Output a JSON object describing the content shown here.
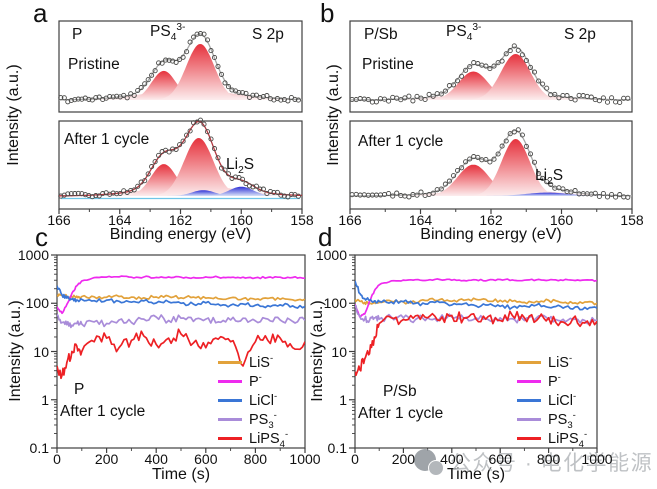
{
  "figure": {
    "watermark": {
      "text": "公众号 · 电化学能源",
      "icon": "official-account-logo",
      "color": "#b5b8bb"
    },
    "axis_color": "#3f3f3f"
  },
  "chart_data": [
    {
      "panel": "a",
      "type": "area",
      "sample": "P",
      "region": "S 2p",
      "xlabel": "Binding energy (eV)",
      "ylabel": "Intensity (a.u.)",
      "x_ticks": [
        166,
        164,
        162,
        160,
        158
      ],
      "x_range": [
        166,
        158
      ],
      "x_unit": "eV",
      "subpanels": [
        {
          "label": "Pristine",
          "peak_label": "PS_4^3-",
          "components": [
            {
              "name": "background",
              "center": 161.7,
              "sigma": 1.5,
              "height": 0.18,
              "color_type": "pale"
            },
            {
              "name": "fit-peak",
              "center": 162.55,
              "sigma": 0.4,
              "height": 0.52,
              "color_type": "red"
            },
            {
              "name": "fit-peak",
              "center": 161.35,
              "sigma": 0.46,
              "height": 1.0,
              "color_type": "red"
            }
          ]
        },
        {
          "label": "After 1 cycle",
          "annotation": "Li_2S",
          "baseline_line_color": "#6fc6e8",
          "components": [
            {
              "name": "background",
              "center": 161.6,
              "sigma": 1.5,
              "height": 0.18,
              "color_type": "pale"
            },
            {
              "name": "fit-peak",
              "center": 162.55,
              "sigma": 0.42,
              "height": 0.55,
              "color_type": "red"
            },
            {
              "name": "fit-peak",
              "center": 161.4,
              "sigma": 0.48,
              "height": 1.0,
              "color_type": "red"
            },
            {
              "name": "fit-peak",
              "center": 161.25,
              "sigma": 0.38,
              "height": 0.1,
              "color_type": "blue"
            },
            {
              "name": "fit-peak",
              "center": 160.0,
              "sigma": 0.4,
              "height": 0.16,
              "color_type": "blue"
            }
          ]
        }
      ]
    },
    {
      "panel": "b",
      "type": "area",
      "sample": "P/Sb",
      "region": "S 2p",
      "xlabel": "Binding energy (eV)",
      "ylabel": "Intensity (a.u.)",
      "x_ticks": [
        166,
        164,
        162,
        160,
        158
      ],
      "x_range": [
        166,
        158
      ],
      "x_unit": "eV",
      "subpanels": [
        {
          "label": "Pristine",
          "peak_label": "PS_4^3-",
          "components": [
            {
              "name": "background",
              "center": 161.8,
              "sigma": 1.4,
              "height": 0.15,
              "color_type": "pale"
            },
            {
              "name": "fit-peak",
              "center": 162.5,
              "sigma": 0.42,
              "height": 0.62,
              "color_type": "red"
            },
            {
              "name": "fit-peak",
              "center": 161.3,
              "sigma": 0.42,
              "height": 1.0,
              "color_type": "red"
            }
          ]
        },
        {
          "label": "After 1 cycle",
          "annotation": "Li_2S",
          "components": [
            {
              "name": "background",
              "center": 161.7,
              "sigma": 1.4,
              "height": 0.12,
              "color_type": "pale"
            },
            {
              "name": "fit-peak",
              "center": 162.5,
              "sigma": 0.45,
              "height": 0.55,
              "color_type": "red"
            },
            {
              "name": "fit-peak",
              "center": 161.3,
              "sigma": 0.4,
              "height": 1.0,
              "color_type": "red"
            },
            {
              "name": "fit-peak",
              "center": 160.4,
              "sigma": 0.6,
              "height": 0.06,
              "color_type": "blue"
            }
          ]
        }
      ]
    },
    {
      "panel": "c",
      "type": "line",
      "sample": "P",
      "condition": "After 1 cycle",
      "xlabel": "Time (s)",
      "ylabel": "Intensity (a.u.)",
      "x_ticks": [
        0,
        200,
        400,
        600,
        800,
        1000
      ],
      "y_ticks": [
        "1000",
        "100",
        "10",
        "1",
        "0.1"
      ],
      "y_scale": "log",
      "y_range": [
        0.1,
        1000
      ],
      "x_range": [
        0,
        1000
      ],
      "t": [
        0,
        20,
        40,
        60,
        80,
        100,
        150,
        200,
        250,
        300,
        350,
        400,
        450,
        500,
        550,
        600,
        650,
        700,
        750,
        800,
        850,
        900,
        950,
        1000
      ],
      "series": [
        {
          "label": "LiS^-",
          "color": "#E2A23B",
          "jitter": 0.035,
          "values": [
            150,
            145,
            138,
            135,
            140,
            138,
            136,
            133,
            138,
            134,
            130,
            135,
            140,
            130,
            134,
            128,
            124,
            130,
            125,
            120,
            126,
            121,
            118,
            122
          ]
        },
        {
          "label": "P^-",
          "color": "#EE2AEE",
          "jitter": 0.018,
          "values": [
            85,
            62,
            95,
            160,
            230,
            290,
            340,
            348,
            352,
            346,
            350,
            343,
            350,
            346,
            341,
            352,
            347,
            341,
            347,
            337,
            343,
            347,
            341,
            331
          ]
        },
        {
          "label": "LiCl^-",
          "color": "#3A76D6",
          "jitter": 0.04,
          "values": [
            230,
            150,
            128,
            120,
            117,
            120,
            113,
            116,
            110,
            105,
            112,
            101,
            107,
            100,
            96,
            102,
            96,
            91,
            97,
            91,
            89,
            93,
            88,
            86
          ]
        },
        {
          "label": "PS_3^-",
          "color": "#A98CD9",
          "jitter": 0.07,
          "values": [
            60,
            40,
            36,
            35,
            38,
            37,
            41,
            38,
            45,
            40,
            47,
            52,
            44,
            49,
            42,
            47,
            41,
            45,
            49,
            43,
            47,
            45,
            42,
            44
          ]
        },
        {
          "label": "LiPS_4^-",
          "color": "#ED2024",
          "jitter": 0.13,
          "values": [
            5,
            3.2,
            6,
            10,
            13,
            10,
            16,
            19,
            12,
            17,
            21,
            14,
            19,
            23,
            15,
            12,
            18,
            16,
            5,
            16,
            17,
            19,
            12,
            16
          ]
        }
      ]
    },
    {
      "panel": "d",
      "type": "line",
      "sample": "P/Sb",
      "condition": "After 1 cycle",
      "xlabel": "Time (s)",
      "ylabel": "Intensity (a.u.)",
      "x_ticks": [
        0,
        200,
        400,
        600,
        800,
        1000
      ],
      "y_ticks": [
        "1000",
        "100",
        "10",
        "1",
        "0.1"
      ],
      "y_scale": "log",
      "y_range": [
        0.1,
        1000
      ],
      "x_range": [
        0,
        1000
      ],
      "t": [
        0,
        20,
        40,
        60,
        80,
        100,
        150,
        200,
        250,
        300,
        350,
        400,
        450,
        500,
        550,
        600,
        650,
        700,
        750,
        800,
        850,
        900,
        950,
        1000
      ],
      "series": [
        {
          "label": "LiS^-",
          "color": "#E2A23B",
          "jitter": 0.035,
          "values": [
            120,
            110,
            104,
            100,
            106,
            104,
            110,
            106,
            103,
            114,
            119,
            110,
            115,
            120,
            110,
            115,
            110,
            104,
            110,
            115,
            104,
            100,
            106,
            100
          ]
        },
        {
          "label": "P^-",
          "color": "#EE2AEE",
          "jitter": 0.018,
          "values": [
            95,
            52,
            60,
            110,
            180,
            240,
            290,
            302,
            308,
            300,
            310,
            300,
            296,
            306,
            300,
            310,
            305,
            300,
            306,
            300,
            305,
            300,
            303,
            298
          ]
        },
        {
          "label": "LiCl^-",
          "color": "#3A76D6",
          "jitter": 0.04,
          "values": [
            290,
            160,
            125,
            115,
            112,
            110,
            106,
            108,
            100,
            96,
            104,
            92,
            98,
            88,
            92,
            86,
            82,
            88,
            92,
            82,
            86,
            76,
            82,
            80
          ]
        },
        {
          "label": "PS_3^-",
          "color": "#A98CD9",
          "jitter": 0.07,
          "values": [
            90,
            55,
            46,
            44,
            50,
            47,
            52,
            50,
            46,
            50,
            48,
            52,
            48,
            50,
            46,
            50,
            48,
            44,
            50,
            46,
            43,
            46,
            44,
            45
          ]
        },
        {
          "label": "LiPS_4^-",
          "color": "#ED2024",
          "jitter": 0.12,
          "values": [
            3.8,
            4.2,
            7,
            9,
            20,
            38,
            50,
            46,
            55,
            50,
            44,
            56,
            50,
            47,
            53,
            44,
            56,
            50,
            44,
            50,
            41,
            48,
            39,
            42
          ]
        }
      ]
    }
  ]
}
